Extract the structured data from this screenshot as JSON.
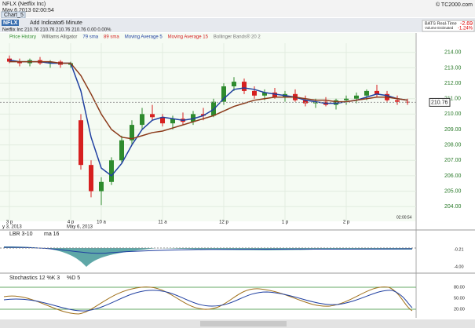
{
  "header": {
    "title": "NFLX (Netflix Inc)",
    "date": "May 6 2013 02:00:54",
    "brand": "© TC2000.com",
    "tab": "Chart_5"
  },
  "toolbar": {
    "symbol": "NFLX",
    "add": "Add Indicator",
    "interval": "5 Minute",
    "quote": "Netflix Inc  210.76  210.76  210.76  210.76  0.00  0.00%",
    "feed": "BATS Real-Time",
    "volume": "Volume Estimated",
    "change": "-2.69",
    "change_pct": "-1.24%"
  },
  "legend": [
    "Price History",
    "Williams Alligator",
    "79 sma",
    "89 sma",
    "Moving Average 5",
    "Moving Average 15",
    "Bollinger Bands® 20 2"
  ],
  "chart_data": {
    "type": "candlestick",
    "categories": [
      "3 p",
      null,
      null,
      null,
      null,
      null,
      "4 p",
      null,
      null,
      "10 a",
      null,
      null,
      null,
      null,
      null,
      "11 a",
      null,
      null,
      null,
      null,
      null,
      "12 p",
      null,
      null,
      null,
      null,
      null,
      "1 p",
      null,
      null,
      null,
      null,
      null,
      "2 p",
      null,
      null,
      null,
      null,
      null,
      null
    ],
    "ohlc": [
      [
        213.6,
        213.8,
        213.3,
        213.4
      ],
      [
        213.4,
        213.6,
        213.1,
        213.3
      ],
      [
        213.3,
        213.6,
        213.1,
        213.5
      ],
      [
        213.5,
        213.7,
        213.2,
        213.3
      ],
      [
        213.3,
        213.5,
        213.0,
        213.4
      ],
      [
        213.4,
        213.5,
        213.0,
        213.2
      ],
      [
        213.2,
        213.4,
        213.0,
        213.3
      ],
      [
        209.6,
        210.0,
        206.4,
        206.7
      ],
      [
        206.7,
        207.0,
        204.6,
        205.0
      ],
      [
        205.0,
        205.9,
        204.1,
        205.6
      ],
      [
        205.6,
        207.2,
        205.4,
        207.0
      ],
      [
        207.0,
        208.6,
        206.8,
        208.3
      ],
      [
        208.3,
        209.6,
        208.0,
        209.3
      ],
      [
        209.3,
        210.4,
        209.0,
        210.0
      ],
      [
        210.0,
        210.6,
        209.6,
        209.8
      ],
      [
        209.8,
        210.0,
        209.2,
        209.4
      ],
      [
        209.4,
        209.9,
        209.0,
        209.7
      ],
      [
        209.7,
        210.1,
        209.3,
        209.5
      ],
      [
        209.5,
        210.2,
        209.3,
        210.0
      ],
      [
        210.0,
        210.4,
        209.6,
        209.9
      ],
      [
        209.9,
        211.0,
        209.8,
        210.8
      ],
      [
        210.8,
        212.0,
        210.6,
        211.8
      ],
      [
        211.8,
        212.4,
        211.5,
        212.1
      ],
      [
        212.1,
        212.3,
        211.3,
        211.5
      ],
      [
        211.5,
        211.8,
        211.0,
        211.2
      ],
      [
        211.2,
        211.6,
        210.9,
        211.4
      ],
      [
        211.4,
        211.7,
        211.0,
        211.1
      ],
      [
        211.1,
        211.5,
        210.8,
        211.3
      ],
      [
        211.3,
        211.6,
        210.8,
        210.9
      ],
      [
        210.9,
        211.2,
        210.5,
        210.7
      ],
      [
        210.7,
        211.0,
        210.4,
        210.8
      ],
      [
        210.8,
        211.1,
        210.5,
        210.6
      ],
      [
        210.6,
        211.0,
        210.3,
        210.9
      ],
      [
        210.9,
        211.2,
        210.6,
        211.0
      ],
      [
        211.0,
        211.4,
        210.7,
        211.2
      ],
      [
        211.2,
        211.6,
        210.9,
        211.5
      ],
      [
        211.5,
        211.9,
        211.1,
        211.3
      ],
      [
        211.3,
        211.5,
        210.8,
        210.9
      ],
      [
        210.9,
        211.2,
        210.6,
        210.8
      ],
      [
        210.8,
        211.0,
        210.6,
        210.76
      ]
    ],
    "up_color": "#2e8b2e",
    "down_color": "#d62020",
    "series": [
      {
        "name": "Moving Average 5",
        "color": "#1f3fa0",
        "values": [
          213.5,
          213.4,
          213.4,
          213.4,
          213.3,
          213.3,
          213.3,
          211.5,
          208.5,
          206.5,
          206.0,
          206.8,
          208.0,
          209.0,
          209.6,
          209.8,
          209.7,
          209.6,
          209.7,
          209.9,
          210.3,
          211.0,
          211.6,
          211.7,
          211.6,
          211.4,
          211.3,
          211.2,
          211.1,
          210.9,
          210.8,
          210.7,
          210.7,
          210.8,
          210.9,
          211.1,
          211.3,
          211.2,
          211.0,
          210.9
        ]
      },
      {
        "name": "Moving Average 15",
        "color": "#8b3a1a",
        "values": [
          213.4,
          213.4,
          213.4,
          213.4,
          213.4,
          213.3,
          213.3,
          212.5,
          211.3,
          210.0,
          209.0,
          208.5,
          208.4,
          208.6,
          208.8,
          208.9,
          209.1,
          209.3,
          209.5,
          209.7,
          209.9,
          210.2,
          210.5,
          210.7,
          210.9,
          211.0,
          211.1,
          211.1,
          211.1,
          211.0,
          210.9,
          210.9,
          210.8,
          210.8,
          210.9,
          211.0,
          211.1,
          211.1,
          211.0,
          210.9
        ]
      }
    ],
    "ylim": [
      203.4,
      214.6
    ],
    "yticks": [
      {
        "value": 204,
        "label": "204.00"
      },
      {
        "value": 205,
        "label": "205.00"
      },
      {
        "value": 206,
        "label": "206.00"
      },
      {
        "value": 207,
        "label": "207.00"
      },
      {
        "value": 208,
        "label": "208.00"
      },
      {
        "value": 209,
        "label": "209.00"
      },
      {
        "value": 210,
        "label": "210.00"
      },
      {
        "value": 211,
        "label": "211.00"
      },
      {
        "value": 212,
        "label": "212.00"
      },
      {
        "value": 213,
        "label": "213.00"
      },
      {
        "value": 214,
        "label": "214.00"
      }
    ],
    "last_price": {
      "value": 210.76,
      "label": "210.76"
    },
    "grid": true
  },
  "dates": {
    "left": "y 3, 2013",
    "mid": "May 6, 2013",
    "time": "02:00:54"
  },
  "panels": [
    {
      "name": "LBR 3-10",
      "extra": "ma 16",
      "ticks": [
        "-0.21",
        "-4.00"
      ]
    },
    {
      "name": "Stochastics 12 %K 3",
      "extra": "%D 5",
      "ticks": [
        "80.00",
        "50.00",
        "20.00"
      ]
    }
  ]
}
